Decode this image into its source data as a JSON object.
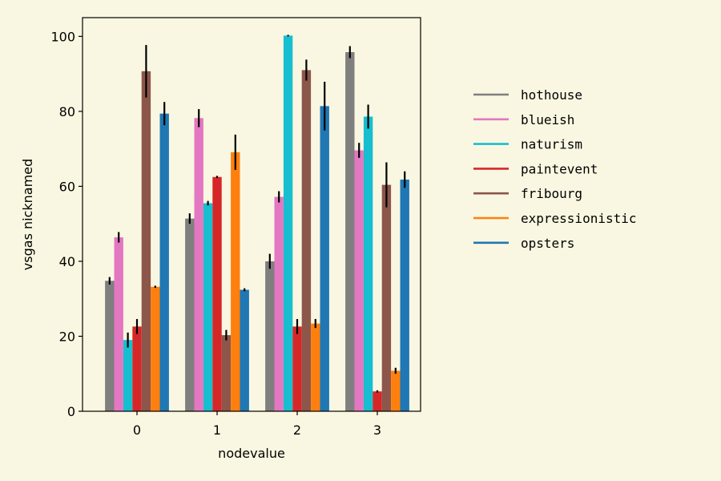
{
  "chart_data": {
    "type": "bar",
    "xlabel": "nodevalue",
    "ylabel": "vsgas nicknamed",
    "categories": [
      "0",
      "1",
      "2",
      "3"
    ],
    "ylim": [
      0,
      105
    ],
    "yticks": [
      0,
      20,
      40,
      60,
      80,
      100
    ],
    "grid": false,
    "legend_position": "right",
    "series": [
      {
        "name": "hothouse",
        "color": "#7f7f7f",
        "values": [
          34.8,
          51.4,
          40.0,
          95.8
        ],
        "errors": [
          1.0,
          1.4,
          2.0,
          1.6
        ]
      },
      {
        "name": "blueish",
        "color": "#e377c2",
        "values": [
          46.4,
          78.2,
          57.2,
          69.6
        ],
        "errors": [
          1.4,
          2.4,
          1.5,
          2.0
        ]
      },
      {
        "name": "naturism",
        "color": "#17becf",
        "values": [
          19.0,
          55.5,
          100.2,
          78.6
        ],
        "errors": [
          2.0,
          0.6,
          0.2,
          3.2
        ]
      },
      {
        "name": "paintevent",
        "color": "#d62728",
        "values": [
          22.6,
          62.5,
          22.6,
          5.3
        ],
        "errors": [
          2.0,
          0.3,
          2.0,
          0.3
        ]
      },
      {
        "name": "fribourg",
        "color": "#8c564b",
        "values": [
          90.7,
          20.3,
          91.0,
          60.4
        ],
        "errors": [
          7.0,
          1.4,
          2.8,
          6.0
        ]
      },
      {
        "name": "expressionistic",
        "color": "#ff7f0e",
        "values": [
          33.2,
          69.1,
          23.4,
          10.8
        ],
        "errors": [
          0.3,
          4.7,
          1.2,
          0.8
        ]
      },
      {
        "name": "opsters",
        "color": "#1f77b4",
        "values": [
          79.4,
          32.4,
          81.4,
          61.8
        ],
        "errors": [
          3.1,
          0.4,
          6.5,
          2.2
        ]
      }
    ]
  }
}
